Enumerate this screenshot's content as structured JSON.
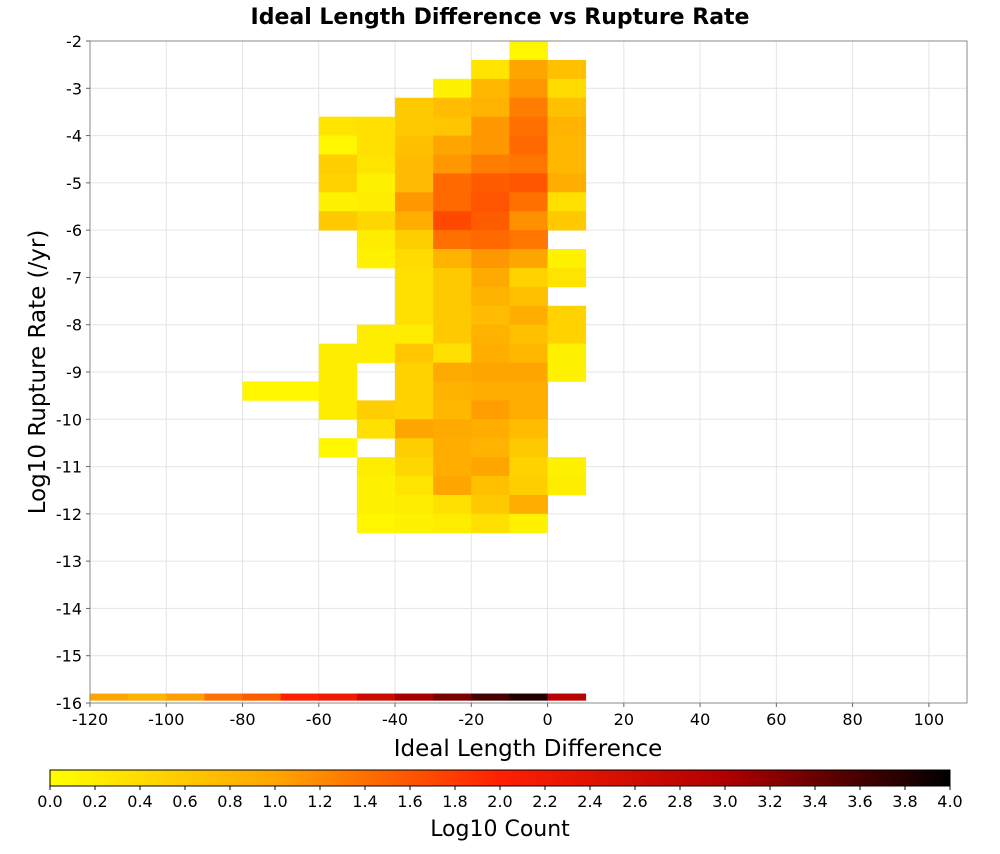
{
  "chart_data": {
    "type": "heatmap",
    "title": "Ideal Length Difference vs Rupture Rate",
    "xlabel": "Ideal Length Difference",
    "ylabel": "Log10 Rupture Rate (/yr)",
    "colorbar_label": "Log10 Count",
    "xlim": [
      -120,
      110
    ],
    "ylim": [
      -16,
      -2
    ],
    "x_ticks": [
      -120,
      -100,
      -80,
      -60,
      -40,
      -20,
      0,
      20,
      40,
      60,
      80,
      100
    ],
    "x_tick_labels": [
      "-120",
      "-100",
      "-80",
      "-60",
      "-40",
      "-20",
      "0",
      "20",
      "40",
      "60",
      "80",
      "100"
    ],
    "y_ticks": [
      -2,
      -3,
      -4,
      -5,
      -6,
      -7,
      -8,
      -9,
      -10,
      -11,
      -12,
      -13,
      -14,
      -15,
      -16
    ],
    "y_tick_labels": [
      "-2",
      "-3",
      "-4",
      "-5",
      "-6",
      "-7",
      "-8",
      "-9",
      "-10",
      "-11",
      "-12",
      "-13",
      "-14",
      "-15",
      "-16"
    ],
    "grid": true,
    "color_scale": {
      "min": 0.0,
      "max": 4.0,
      "stops": [
        "#ffff00",
        "#ffa500",
        "#ff2000",
        "#b00000",
        "#000000"
      ],
      "ticks": [
        "0.0",
        "0.2",
        "0.4",
        "0.6",
        "0.8",
        "1.0",
        "1.2",
        "1.4",
        "1.6",
        "1.8",
        "2.0",
        "2.2",
        "2.4",
        "2.6",
        "2.8",
        "3.0",
        "3.2",
        "3.4",
        "3.6",
        "3.8",
        "4.0"
      ]
    },
    "bin_width": 10,
    "bin_height": 0.4,
    "cells": [
      [
        -5,
        -2.2,
        0.1
      ],
      [
        -15,
        -2.6,
        0.3
      ],
      [
        -5,
        -2.6,
        1.0
      ],
      [
        5,
        -2.6,
        0.7
      ],
      [
        -25,
        -3.0,
        0.15
      ],
      [
        -15,
        -3.0,
        0.8
      ],
      [
        -5,
        -3.0,
        1.1
      ],
      [
        5,
        -3.0,
        0.4
      ],
      [
        -35,
        -3.4,
        0.6
      ],
      [
        -25,
        -3.4,
        0.75
      ],
      [
        -15,
        -3.4,
        0.85
      ],
      [
        -5,
        -3.4,
        1.3
      ],
      [
        5,
        -3.4,
        0.7
      ],
      [
        -55,
        -3.8,
        0.3
      ],
      [
        -45,
        -3.8,
        0.35
      ],
      [
        -35,
        -3.8,
        0.6
      ],
      [
        -25,
        -3.8,
        0.65
      ],
      [
        -15,
        -3.8,
        1.1
      ],
      [
        -5,
        -3.8,
        1.4
      ],
      [
        5,
        -3.8,
        0.85
      ],
      [
        -55,
        -4.2,
        0.1
      ],
      [
        -45,
        -4.2,
        0.35
      ],
      [
        -35,
        -4.2,
        0.7
      ],
      [
        -25,
        -4.2,
        1.0
      ],
      [
        -15,
        -4.2,
        1.1
      ],
      [
        -5,
        -4.2,
        1.45
      ],
      [
        5,
        -4.2,
        0.8
      ],
      [
        -55,
        -4.6,
        0.55
      ],
      [
        -45,
        -4.6,
        0.3
      ],
      [
        -35,
        -4.6,
        0.75
      ],
      [
        -25,
        -4.6,
        1.1
      ],
      [
        -15,
        -4.6,
        1.3
      ],
      [
        -5,
        -4.6,
        1.35
      ],
      [
        5,
        -4.6,
        0.8
      ],
      [
        -55,
        -5.0,
        0.5
      ],
      [
        -45,
        -5.0,
        0.15
      ],
      [
        -35,
        -5.0,
        0.75
      ],
      [
        -25,
        -5.0,
        1.45
      ],
      [
        -15,
        -5.0,
        1.55
      ],
      [
        -5,
        -5.0,
        1.6
      ],
      [
        5,
        -5.0,
        0.9
      ],
      [
        -55,
        -5.4,
        0.15
      ],
      [
        -45,
        -5.4,
        0.2
      ],
      [
        -35,
        -5.4,
        1.1
      ],
      [
        -25,
        -5.4,
        1.45
      ],
      [
        -15,
        -5.4,
        1.6
      ],
      [
        -5,
        -5.4,
        1.4
      ],
      [
        5,
        -5.4,
        0.35
      ],
      [
        -55,
        -5.8,
        0.6
      ],
      [
        -45,
        -5.8,
        0.45
      ],
      [
        -35,
        -5.8,
        0.9
      ],
      [
        -25,
        -5.8,
        1.7
      ],
      [
        -15,
        -5.8,
        1.55
      ],
      [
        -5,
        -5.8,
        1.15
      ],
      [
        5,
        -5.8,
        0.6
      ],
      [
        -45,
        -6.2,
        0.2
      ],
      [
        -35,
        -6.2,
        0.55
      ],
      [
        -25,
        -6.2,
        1.4
      ],
      [
        -15,
        -6.2,
        1.45
      ],
      [
        -5,
        -6.2,
        1.35
      ],
      [
        -45,
        -6.6,
        0.15
      ],
      [
        -35,
        -6.6,
        0.4
      ],
      [
        -25,
        -6.6,
        0.85
      ],
      [
        -15,
        -6.6,
        1.1
      ],
      [
        -5,
        -6.6,
        1.0
      ],
      [
        5,
        -6.6,
        0.15
      ],
      [
        -35,
        -7.0,
        0.35
      ],
      [
        -25,
        -7.0,
        0.6
      ],
      [
        -15,
        -7.0,
        0.95
      ],
      [
        -5,
        -7.0,
        0.5
      ],
      [
        5,
        -7.0,
        0.3
      ],
      [
        -35,
        -7.4,
        0.35
      ],
      [
        -25,
        -7.4,
        0.6
      ],
      [
        -15,
        -7.4,
        0.85
      ],
      [
        -5,
        -7.4,
        0.7
      ],
      [
        -35,
        -7.8,
        0.35
      ],
      [
        -25,
        -7.8,
        0.6
      ],
      [
        -15,
        -7.8,
        0.75
      ],
      [
        -5,
        -7.8,
        0.9
      ],
      [
        5,
        -7.8,
        0.5
      ],
      [
        -45,
        -8.2,
        0.2
      ],
      [
        -35,
        -8.2,
        0.2
      ],
      [
        -25,
        -8.2,
        0.6
      ],
      [
        -15,
        -8.2,
        0.85
      ],
      [
        -5,
        -8.2,
        0.7
      ],
      [
        5,
        -8.2,
        0.5
      ],
      [
        -55,
        -8.6,
        0.2
      ],
      [
        -45,
        -8.6,
        0.2
      ],
      [
        -35,
        -8.6,
        0.65
      ],
      [
        -25,
        -8.6,
        0.35
      ],
      [
        -15,
        -8.6,
        0.9
      ],
      [
        -5,
        -8.6,
        0.8
      ],
      [
        5,
        -8.6,
        0.15
      ],
      [
        -55,
        -9.0,
        0.2
      ],
      [
        -35,
        -9.0,
        0.5
      ],
      [
        -25,
        -9.0,
        0.95
      ],
      [
        -15,
        -9.0,
        1.0
      ],
      [
        -5,
        -9.0,
        1.0
      ],
      [
        5,
        -9.0,
        0.15
      ],
      [
        -75,
        -9.4,
        0.1
      ],
      [
        -65,
        -9.4,
        0.1
      ],
      [
        -55,
        -9.4,
        0.2
      ],
      [
        -35,
        -9.4,
        0.5
      ],
      [
        -25,
        -9.4,
        0.85
      ],
      [
        -15,
        -9.4,
        0.9
      ],
      [
        -5,
        -9.4,
        0.9
      ],
      [
        -55,
        -9.8,
        0.2
      ],
      [
        -45,
        -9.8,
        0.55
      ],
      [
        -35,
        -9.8,
        0.5
      ],
      [
        -25,
        -9.8,
        0.8
      ],
      [
        -15,
        -9.8,
        1.05
      ],
      [
        -5,
        -9.8,
        0.9
      ],
      [
        -45,
        -10.2,
        0.35
      ],
      [
        -35,
        -10.2,
        1.0
      ],
      [
        -25,
        -10.2,
        0.95
      ],
      [
        -15,
        -10.2,
        0.9
      ],
      [
        -5,
        -10.2,
        0.75
      ],
      [
        -55,
        -10.6,
        0.1
      ],
      [
        -35,
        -10.6,
        0.55
      ],
      [
        -25,
        -10.6,
        0.9
      ],
      [
        -15,
        -10.6,
        0.85
      ],
      [
        -5,
        -10.6,
        0.6
      ],
      [
        -45,
        -11.0,
        0.2
      ],
      [
        -35,
        -11.0,
        0.45
      ],
      [
        -25,
        -11.0,
        0.9
      ],
      [
        -15,
        -11.0,
        1.0
      ],
      [
        -5,
        -11.0,
        0.5
      ],
      [
        5,
        -11.0,
        0.15
      ],
      [
        -45,
        -11.4,
        0.15
      ],
      [
        -35,
        -11.4,
        0.3
      ],
      [
        -25,
        -11.4,
        1.0
      ],
      [
        -15,
        -11.4,
        0.7
      ],
      [
        -5,
        -11.4,
        0.55
      ],
      [
        5,
        -11.4,
        0.2
      ],
      [
        -45,
        -11.8,
        0.15
      ],
      [
        -35,
        -11.8,
        0.2
      ],
      [
        -25,
        -11.8,
        0.35
      ],
      [
        -15,
        -11.8,
        0.6
      ],
      [
        -5,
        -11.8,
        0.9
      ],
      [
        -45,
        -12.2,
        0.1
      ],
      [
        -35,
        -12.2,
        0.15
      ],
      [
        -25,
        -12.2,
        0.2
      ],
      [
        -15,
        -12.2,
        0.35
      ],
      [
        -5,
        -12.2,
        0.15
      ]
    ],
    "bottom_strip": {
      "y": -15.95,
      "height": 0.15,
      "cells": [
        [
          -115,
          1.0
        ],
        [
          -105,
          0.85
        ],
        [
          -95,
          1.05
        ],
        [
          -85,
          1.4
        ],
        [
          -75,
          1.55
        ],
        [
          -65,
          2.0
        ],
        [
          -55,
          2.2
        ],
        [
          -45,
          2.65
        ],
        [
          -35,
          3.05
        ],
        [
          -25,
          3.3
        ],
        [
          -15,
          3.6
        ],
        [
          -5,
          3.8
        ],
        [
          5,
          2.9
        ]
      ]
    }
  }
}
